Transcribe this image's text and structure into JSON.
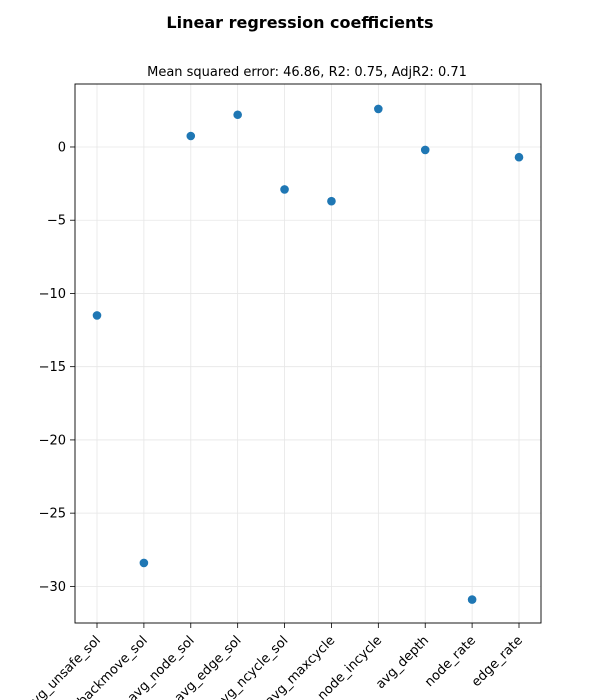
{
  "chart_data": {
    "type": "scatter",
    "title": "Linear regression coefficients",
    "subtitle": "Mean squared error: 46.86, R2: 0.75, AdjR2: 0.71",
    "xlabel": "",
    "ylabel": "",
    "categories": [
      "avg_unsafe_sol",
      "avg_backmove_sol",
      "avg_node_sol",
      "avg_edge_sol",
      "avg_ncycle_sol",
      "avg_maxcycle",
      "node_incycle",
      "avg_depth",
      "node_rate",
      "edge_rate"
    ],
    "values": [
      -11.5,
      -28.4,
      0.75,
      2.2,
      -2.9,
      -3.7,
      2.6,
      -0.2,
      -30.9,
      -0.7
    ],
    "ylim": [
      -32.5,
      4.3
    ],
    "yticks": [
      0,
      -5,
      -10,
      -15,
      -20,
      -25,
      -30
    ],
    "ytick_labels": [
      "0",
      "−5",
      "−10",
      "−15",
      "−20",
      "−25",
      "−30"
    ],
    "grid": true,
    "marker_color": "#1f77b4"
  }
}
